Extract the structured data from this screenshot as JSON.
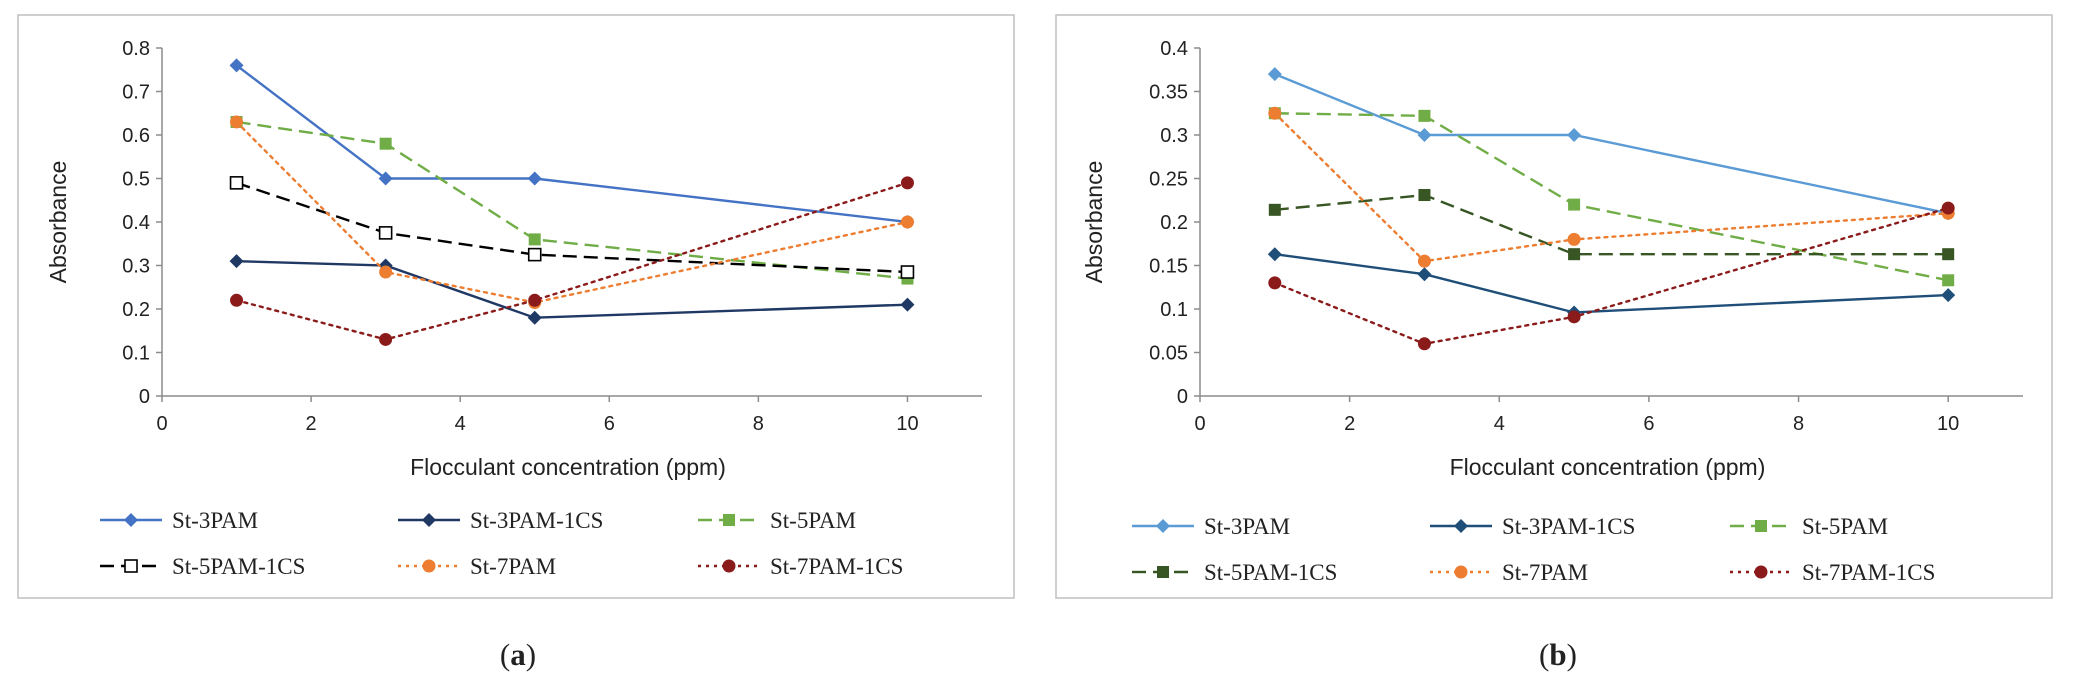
{
  "chart_data": [
    {
      "type": "line",
      "panel_label": "a",
      "caption_open": "(",
      "caption_close": ")",
      "title": "",
      "xlabel": "Flocculant concentration (ppm)",
      "ylabel": "Absorbance",
      "xlim": [
        0,
        11
      ],
      "ylim": [
        0,
        0.8
      ],
      "xticks": [
        0,
        2,
        4,
        6,
        8,
        10
      ],
      "yticks": [
        0,
        0.1,
        0.2,
        0.3,
        0.4,
        0.5,
        0.6,
        0.7,
        0.8
      ],
      "ytick_labels": [
        "0",
        "0.1",
        "0.2",
        "0.3",
        "0.4",
        "0.5",
        "0.6",
        "0.7",
        "0.8"
      ],
      "grid": false,
      "legend_position": "bottom",
      "x": [
        1,
        3,
        5,
        10
      ],
      "series": [
        {
          "name": "St-3PAM",
          "values": [
            0.76,
            0.5,
            0.5,
            0.4
          ],
          "color": "#4472C4",
          "dash": "solid",
          "marker": "diamond"
        },
        {
          "name": "St-3PAM-1CS",
          "values": [
            0.31,
            0.3,
            0.18,
            0.21
          ],
          "color": "#1F3864",
          "dash": "solid",
          "marker": "diamond"
        },
        {
          "name": "St-5PAM",
          "values": [
            0.63,
            0.58,
            0.36,
            0.27
          ],
          "color": "#70AD47",
          "dash": "dash",
          "marker": "square"
        },
        {
          "name": "St-5PAM-1CS",
          "values": [
            0.49,
            0.375,
            0.325,
            0.285
          ],
          "color": "#000000",
          "dash": "dash",
          "marker": "square-open"
        },
        {
          "name": "St-7PAM",
          "values": [
            0.63,
            0.285,
            0.215,
            0.4
          ],
          "color": "#ED7D31",
          "dash": "dot",
          "marker": "circle"
        },
        {
          "name": "St-7PAM-1CS",
          "values": [
            0.22,
            0.13,
            0.22,
            0.49
          ],
          "color": "#8B1A1A",
          "dash": "dot",
          "marker": "circle"
        }
      ]
    },
    {
      "type": "line",
      "panel_label": "b",
      "caption_open": "(",
      "caption_close": ")",
      "title": "",
      "xlabel": "Flocculant concentration (ppm)",
      "ylabel": "Absorbance",
      "xlim": [
        0,
        11
      ],
      "ylim": [
        0,
        0.4
      ],
      "xticks": [
        0,
        2,
        4,
        6,
        8,
        10
      ],
      "yticks": [
        0,
        0.05,
        0.1,
        0.15,
        0.2,
        0.25,
        0.3,
        0.35,
        0.4
      ],
      "ytick_labels": [
        "0",
        "0.05",
        "0.1",
        "0.15",
        "0.2",
        "0.25",
        "0.3",
        "0.35",
        "0.4"
      ],
      "grid": false,
      "legend_position": "bottom",
      "x": [
        1,
        3,
        5,
        10
      ],
      "series": [
        {
          "name": "St-3PAM",
          "values": [
            0.37,
            0.3,
            0.3,
            0.21
          ],
          "color": "#5B9BD5",
          "dash": "solid",
          "marker": "diamond"
        },
        {
          "name": "St-3PAM-1CS",
          "values": [
            0.163,
            0.14,
            0.096,
            0.116
          ],
          "color": "#1F4E79",
          "dash": "solid",
          "marker": "diamond"
        },
        {
          "name": "St-5PAM",
          "values": [
            0.325,
            0.322,
            0.22,
            0.133
          ],
          "color": "#70AD47",
          "dash": "dash",
          "marker": "square"
        },
        {
          "name": "St-5PAM-1CS",
          "values": [
            0.214,
            0.231,
            0.163,
            0.163
          ],
          "color": "#375623",
          "dash": "dash",
          "marker": "square"
        },
        {
          "name": "St-7PAM",
          "values": [
            0.325,
            0.155,
            0.18,
            0.21
          ],
          "color": "#ED7D31",
          "dash": "dot",
          "marker": "circle"
        },
        {
          "name": "St-7PAM-1CS",
          "values": [
            0.13,
            0.06,
            0.091,
            0.216
          ],
          "color": "#8B1A1A",
          "dash": "dot",
          "marker": "circle"
        }
      ]
    }
  ]
}
